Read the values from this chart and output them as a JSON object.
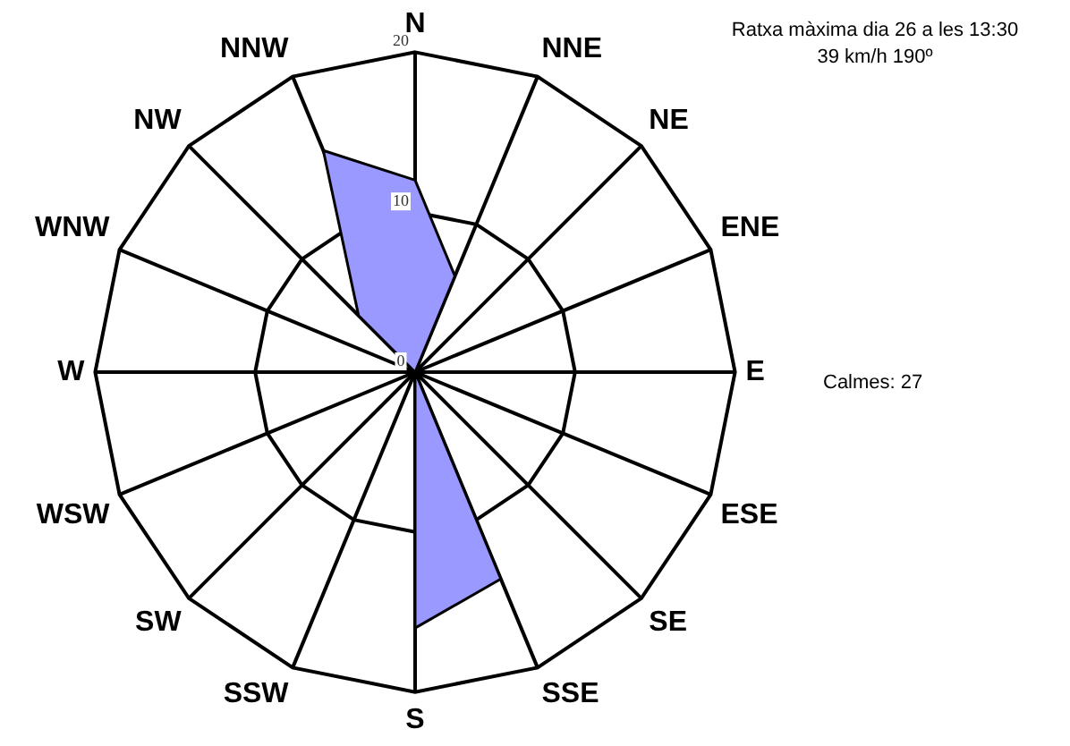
{
  "chart_data": {
    "type": "radar",
    "categories": [
      "N",
      "NNE",
      "NE",
      "ENE",
      "E",
      "ESE",
      "SE",
      "SSE",
      "S",
      "SSW",
      "SW",
      "WSW",
      "W",
      "WNW",
      "NW",
      "NNW"
    ],
    "series": [
      {
        "color": "#9999ff",
        "values": [
          12,
          6.5,
          0,
          0,
          0,
          0,
          0,
          14,
          16,
          0,
          0,
          0,
          0,
          0,
          5,
          15
        ]
      }
    ],
    "ylim": [
      0,
      20
    ],
    "yticks": [
      0,
      10,
      20
    ],
    "grid": true,
    "legend": false,
    "marker": "none",
    "annotations": [
      "Ratxa màxima dia 26 a les 13:30\n39 km/h 190º",
      "Calmes: 27"
    ]
  }
}
